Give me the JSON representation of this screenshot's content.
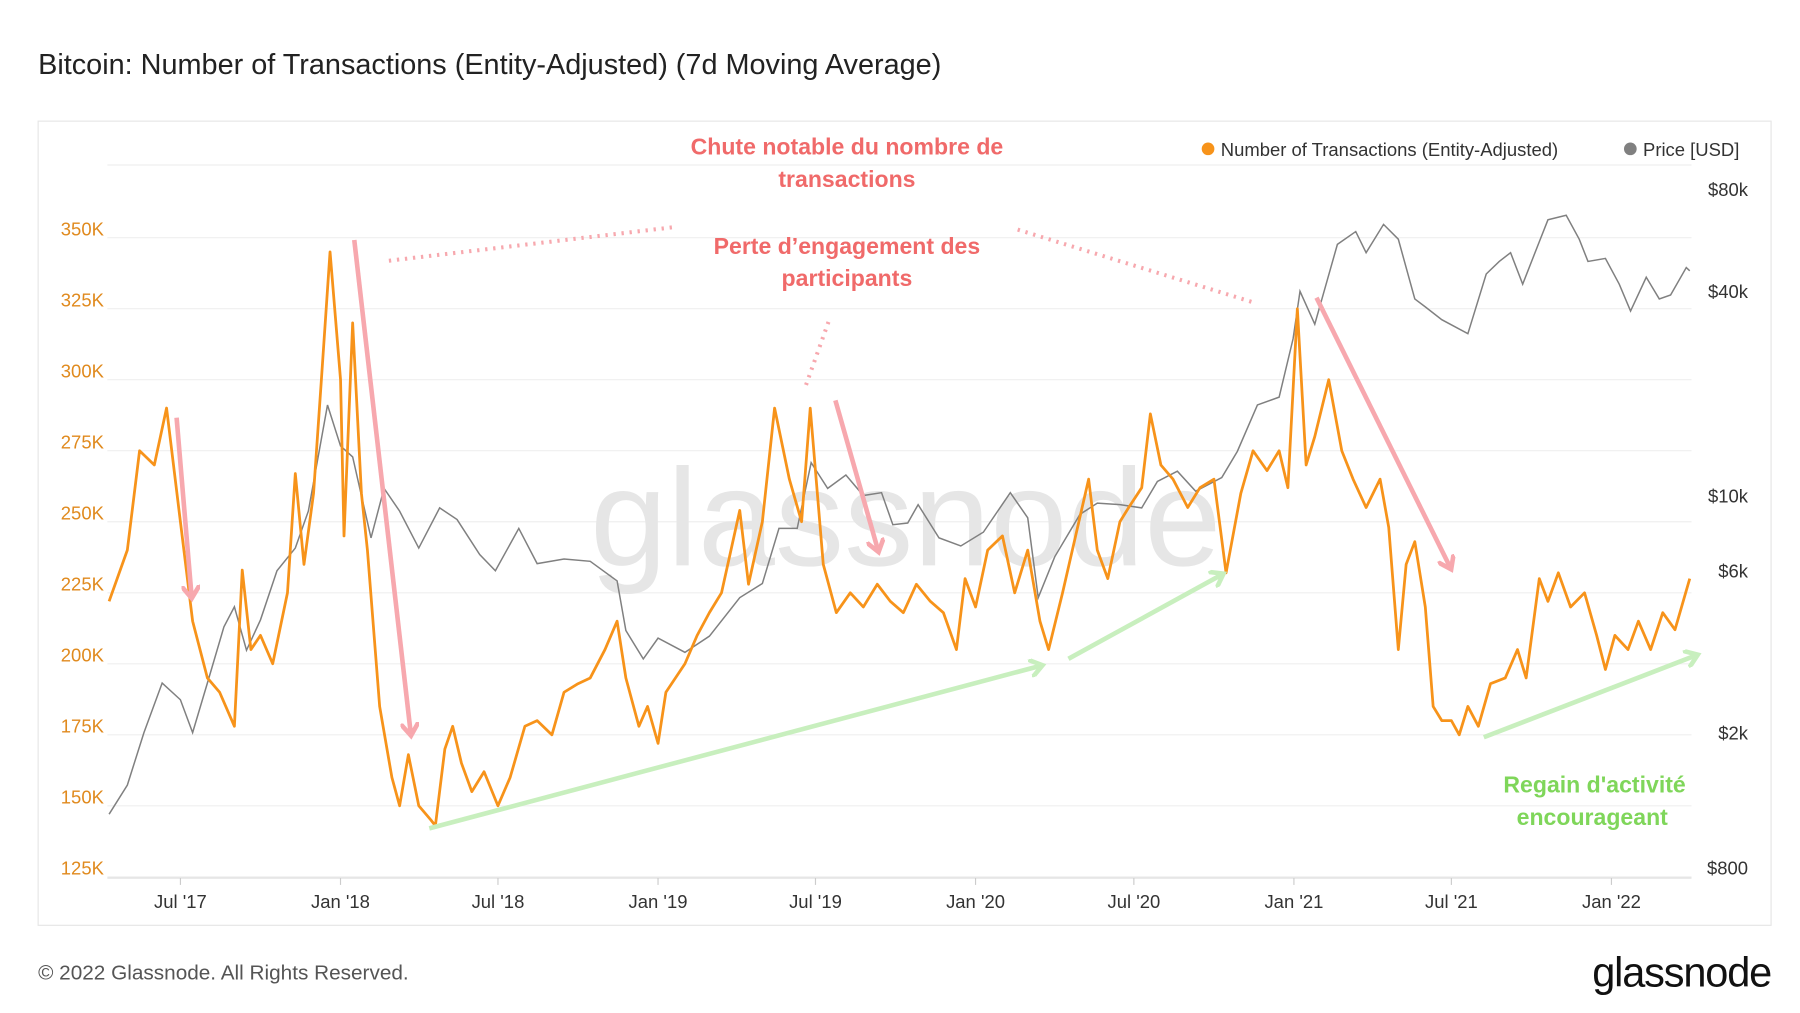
{
  "title": "Bitcoin: Number of Transactions (Entity-Adjusted) (7d Moving Average)",
  "footer": {
    "copyright": "© 2022 Glassnode. All Rights Reserved.",
    "logo": "glassnode"
  },
  "watermark": "glassnode",
  "colors": {
    "tx": "#f7931a",
    "price": "#808080",
    "annot_red": "#f06a6a",
    "annot_green": "#7fd65a",
    "arrow_red": "#f7a8ae",
    "arrow_green": "#c8efbe"
  },
  "annotations": {
    "drop_line1": "Chute notable du nombre de",
    "drop_line2": "transactions",
    "engage_line1": "Perte d’engagement des",
    "engage_line2": "participants",
    "regain_line1": "Regain d'activité",
    "regain_line2": "encourageant"
  },
  "chart_data": {
    "type": "line",
    "title": "Bitcoin: Number of Transactions (Entity-Adjusted) (7d Moving Average)",
    "legend": {
      "position": "top-right",
      "entries": [
        "Number of Transactions (Entity-Adjusted)",
        "Price [USD]"
      ]
    },
    "x_range": [
      "2017-04-08",
      "2022-04-03"
    ],
    "x_ticks": [
      {
        "date": "2017-07-01",
        "label": "Jul '17"
      },
      {
        "date": "2018-01-01",
        "label": "Jan '18"
      },
      {
        "date": "2018-07-01",
        "label": "Jul '18"
      },
      {
        "date": "2019-01-01",
        "label": "Jan '19"
      },
      {
        "date": "2019-07-01",
        "label": "Jul '19"
      },
      {
        "date": "2020-01-01",
        "label": "Jan '20"
      },
      {
        "date": "2020-07-01",
        "label": "Jul '20"
      },
      {
        "date": "2021-01-01",
        "label": "Jan '21"
      },
      {
        "date": "2021-07-01",
        "label": "Jul '21"
      },
      {
        "date": "2022-01-01",
        "label": "Jan '22"
      }
    ],
    "y_left": {
      "label": "Number of Transactions",
      "range": [
        125000,
        350000
      ],
      "ticks": [
        {
          "v": 125000,
          "label": "125K"
        },
        {
          "v": 150000,
          "label": "150K"
        },
        {
          "v": 175000,
          "label": "175K"
        },
        {
          "v": 200000,
          "label": "200K"
        },
        {
          "v": 225000,
          "label": "225K"
        },
        {
          "v": 250000,
          "label": "250K"
        },
        {
          "v": 275000,
          "label": "275K"
        },
        {
          "v": 300000,
          "label": "300K"
        },
        {
          "v": 325000,
          "label": "325K"
        },
        {
          "v": 350000,
          "label": "350K"
        }
      ]
    },
    "y_right": {
      "label": "Price [USD]",
      "scale": "log",
      "range": [
        800,
        80000
      ],
      "ticks": [
        {
          "v": 800,
          "label": "$800"
        },
        {
          "v": 2000,
          "label": "$2k"
        },
        {
          "v": 6000,
          "label": "$6k"
        },
        {
          "v": 10000,
          "label": "$10k"
        },
        {
          "v": 40000,
          "label": "$40k"
        },
        {
          "v": 80000,
          "label": "$80k"
        }
      ]
    },
    "grid": true,
    "series": [
      {
        "name": "Number of Transactions (Entity-Adjusted)",
        "axis": "left",
        "unit": "thousands",
        "points": [
          [
            "2017-04-10",
            222
          ],
          [
            "2017-05-01",
            240
          ],
          [
            "2017-05-15",
            275
          ],
          [
            "2017-06-01",
            270
          ],
          [
            "2017-06-15",
            290
          ],
          [
            "2017-07-01",
            250
          ],
          [
            "2017-07-15",
            215
          ],
          [
            "2017-08-01",
            195
          ],
          [
            "2017-08-15",
            190
          ],
          [
            "2017-09-01",
            178
          ],
          [
            "2017-09-10",
            233
          ],
          [
            "2017-09-20",
            205
          ],
          [
            "2017-10-01",
            210
          ],
          [
            "2017-10-15",
            200
          ],
          [
            "2017-11-01",
            225
          ],
          [
            "2017-11-10",
            267
          ],
          [
            "2017-11-20",
            235
          ],
          [
            "2017-12-01",
            260
          ],
          [
            "2017-12-10",
            300
          ],
          [
            "2017-12-20",
            345
          ],
          [
            "2018-01-01",
            300
          ],
          [
            "2018-01-05",
            245
          ],
          [
            "2018-01-15",
            320
          ],
          [
            "2018-01-25",
            260
          ],
          [
            "2018-02-01",
            240
          ],
          [
            "2018-02-15",
            185
          ],
          [
            "2018-03-01",
            160
          ],
          [
            "2018-03-10",
            150
          ],
          [
            "2018-03-20",
            168
          ],
          [
            "2018-04-01",
            150
          ],
          [
            "2018-04-15",
            145
          ],
          [
            "2018-04-20",
            143
          ],
          [
            "2018-05-01",
            170
          ],
          [
            "2018-05-10",
            178
          ],
          [
            "2018-05-20",
            165
          ],
          [
            "2018-06-01",
            155
          ],
          [
            "2018-06-15",
            162
          ],
          [
            "2018-07-01",
            150
          ],
          [
            "2018-07-15",
            160
          ],
          [
            "2018-08-01",
            178
          ],
          [
            "2018-08-15",
            180
          ],
          [
            "2018-09-01",
            175
          ],
          [
            "2018-09-15",
            190
          ],
          [
            "2018-10-01",
            193
          ],
          [
            "2018-10-15",
            195
          ],
          [
            "2018-11-01",
            205
          ],
          [
            "2018-11-15",
            215
          ],
          [
            "2018-11-25",
            195
          ],
          [
            "2018-12-10",
            178
          ],
          [
            "2018-12-20",
            185
          ],
          [
            "2019-01-01",
            172
          ],
          [
            "2019-01-10",
            190
          ],
          [
            "2019-02-01",
            200
          ],
          [
            "2019-02-15",
            210
          ],
          [
            "2019-03-01",
            218
          ],
          [
            "2019-03-15",
            225
          ],
          [
            "2019-04-05",
            254
          ],
          [
            "2019-04-15",
            228
          ],
          [
            "2019-05-01",
            250
          ],
          [
            "2019-05-15",
            290
          ],
          [
            "2019-06-01",
            265
          ],
          [
            "2019-06-15",
            250
          ],
          [
            "2019-06-25",
            290
          ],
          [
            "2019-07-10",
            235
          ],
          [
            "2019-07-25",
            218
          ],
          [
            "2019-08-10",
            225
          ],
          [
            "2019-08-25",
            220
          ],
          [
            "2019-09-10",
            228
          ],
          [
            "2019-09-25",
            222
          ],
          [
            "2019-10-10",
            218
          ],
          [
            "2019-10-25",
            228
          ],
          [
            "2019-11-10",
            222
          ],
          [
            "2019-11-25",
            218
          ],
          [
            "2019-12-10",
            205
          ],
          [
            "2019-12-20",
            230
          ],
          [
            "2020-01-01",
            220
          ],
          [
            "2020-01-15",
            240
          ],
          [
            "2020-02-01",
            245
          ],
          [
            "2020-02-15",
            225
          ],
          [
            "2020-03-01",
            240
          ],
          [
            "2020-03-15",
            215
          ],
          [
            "2020-03-25",
            205
          ],
          [
            "2020-04-10",
            225
          ],
          [
            "2020-04-25",
            245
          ],
          [
            "2020-05-10",
            265
          ],
          [
            "2020-05-20",
            240
          ],
          [
            "2020-06-01",
            230
          ],
          [
            "2020-06-15",
            250
          ],
          [
            "2020-06-25",
            255
          ],
          [
            "2020-07-10",
            262
          ],
          [
            "2020-07-20",
            288
          ],
          [
            "2020-08-01",
            270
          ],
          [
            "2020-08-15",
            265
          ],
          [
            "2020-09-01",
            255
          ],
          [
            "2020-09-15",
            262
          ],
          [
            "2020-10-01",
            265
          ],
          [
            "2020-10-15",
            232
          ],
          [
            "2020-11-01",
            260
          ],
          [
            "2020-11-15",
            275
          ],
          [
            "2020-12-01",
            268
          ],
          [
            "2020-12-15",
            275
          ],
          [
            "2020-12-25",
            262
          ],
          [
            "2021-01-05",
            325
          ],
          [
            "2021-01-15",
            270
          ],
          [
            "2021-01-25",
            280
          ],
          [
            "2021-02-10",
            300
          ],
          [
            "2021-02-25",
            275
          ],
          [
            "2021-03-10",
            265
          ],
          [
            "2021-03-25",
            255
          ],
          [
            "2021-04-10",
            265
          ],
          [
            "2021-04-20",
            248
          ],
          [
            "2021-05-01",
            205
          ],
          [
            "2021-05-10",
            235
          ],
          [
            "2021-05-20",
            243
          ],
          [
            "2021-06-01",
            220
          ],
          [
            "2021-06-10",
            185
          ],
          [
            "2021-06-20",
            180
          ],
          [
            "2021-07-01",
            180
          ],
          [
            "2021-07-10",
            175
          ],
          [
            "2021-07-20",
            185
          ],
          [
            "2021-08-01",
            178
          ],
          [
            "2021-08-15",
            193
          ],
          [
            "2021-09-01",
            195
          ],
          [
            "2021-09-15",
            205
          ],
          [
            "2021-09-25",
            195
          ],
          [
            "2021-10-10",
            230
          ],
          [
            "2021-10-20",
            222
          ],
          [
            "2021-11-01",
            232
          ],
          [
            "2021-11-15",
            220
          ],
          [
            "2021-12-01",
            225
          ],
          [
            "2021-12-15",
            210
          ],
          [
            "2021-12-25",
            198
          ],
          [
            "2022-01-05",
            210
          ],
          [
            "2022-01-20",
            205
          ],
          [
            "2022-02-01",
            215
          ],
          [
            "2022-02-15",
            205
          ],
          [
            "2022-03-01",
            218
          ],
          [
            "2022-03-15",
            212
          ],
          [
            "2022-04-01",
            230
          ]
        ]
      },
      {
        "name": "Price [USD]",
        "axis": "right",
        "unit": "USD",
        "points": [
          [
            "2017-04-10",
            1150
          ],
          [
            "2017-05-01",
            1400
          ],
          [
            "2017-05-20",
            2000
          ],
          [
            "2017-06-10",
            2800
          ],
          [
            "2017-07-01",
            2500
          ],
          [
            "2017-07-15",
            2000
          ],
          [
            "2017-08-01",
            2800
          ],
          [
            "2017-08-20",
            4100
          ],
          [
            "2017-09-01",
            4700
          ],
          [
            "2017-09-15",
            3500
          ],
          [
            "2017-10-01",
            4300
          ],
          [
            "2017-10-20",
            6000
          ],
          [
            "2017-11-10",
            7000
          ],
          [
            "2017-11-25",
            9000
          ],
          [
            "2017-12-17",
            18500
          ],
          [
            "2018-01-01",
            14000
          ],
          [
            "2018-01-15",
            13000
          ],
          [
            "2018-02-05",
            7500
          ],
          [
            "2018-02-20",
            10500
          ],
          [
            "2018-03-10",
            9000
          ],
          [
            "2018-04-01",
            7000
          ],
          [
            "2018-04-25",
            9200
          ],
          [
            "2018-05-15",
            8500
          ],
          [
            "2018-06-10",
            6700
          ],
          [
            "2018-06-28",
            6000
          ],
          [
            "2018-07-25",
            8000
          ],
          [
            "2018-08-15",
            6300
          ],
          [
            "2018-09-15",
            6500
          ],
          [
            "2018-10-15",
            6400
          ],
          [
            "2018-11-15",
            5600
          ],
          [
            "2018-11-25",
            4000
          ],
          [
            "2018-12-15",
            3300
          ],
          [
            "2019-01-01",
            3800
          ],
          [
            "2019-02-01",
            3450
          ],
          [
            "2019-03-01",
            3850
          ],
          [
            "2019-04-05",
            5000
          ],
          [
            "2019-05-01",
            5500
          ],
          [
            "2019-05-20",
            8000
          ],
          [
            "2019-06-10",
            8000
          ],
          [
            "2019-06-26",
            12500
          ],
          [
            "2019-07-15",
            10500
          ],
          [
            "2019-08-05",
            11500
          ],
          [
            "2019-08-25",
            10000
          ],
          [
            "2019-09-15",
            10200
          ],
          [
            "2019-09-28",
            8200
          ],
          [
            "2019-10-15",
            8300
          ],
          [
            "2019-10-27",
            9400
          ],
          [
            "2019-11-20",
            7500
          ],
          [
            "2019-12-15",
            7100
          ],
          [
            "2020-01-10",
            7800
          ],
          [
            "2020-02-10",
            10200
          ],
          [
            "2020-03-01",
            8600
          ],
          [
            "2020-03-13",
            5000
          ],
          [
            "2020-04-01",
            6600
          ],
          [
            "2020-04-30",
            8800
          ],
          [
            "2020-05-20",
            9500
          ],
          [
            "2020-06-15",
            9400
          ],
          [
            "2020-07-10",
            9200
          ],
          [
            "2020-07-28",
            11000
          ],
          [
            "2020-08-20",
            11800
          ],
          [
            "2020-09-10",
            10300
          ],
          [
            "2020-10-10",
            11300
          ],
          [
            "2020-10-28",
            13500
          ],
          [
            "2020-11-20",
            18500
          ],
          [
            "2020-12-15",
            19500
          ],
          [
            "2020-12-31",
            29000
          ],
          [
            "2021-01-08",
            40000
          ],
          [
            "2021-01-25",
            32000
          ],
          [
            "2021-02-20",
            55000
          ],
          [
            "2021-03-13",
            60000
          ],
          [
            "2021-03-25",
            52000
          ],
          [
            "2021-04-14",
            63000
          ],
          [
            "2021-05-01",
            57000
          ],
          [
            "2021-05-20",
            38000
          ],
          [
            "2021-06-01",
            36000
          ],
          [
            "2021-06-20",
            33000
          ],
          [
            "2021-07-20",
            30000
          ],
          [
            "2021-08-10",
            45000
          ],
          [
            "2021-08-25",
            49000
          ],
          [
            "2021-09-07",
            52000
          ],
          [
            "2021-09-21",
            42000
          ],
          [
            "2021-10-10",
            56000
          ],
          [
            "2021-10-20",
            65000
          ],
          [
            "2021-11-10",
            67000
          ],
          [
            "2021-11-25",
            57000
          ],
          [
            "2021-12-05",
            49000
          ],
          [
            "2021-12-25",
            50000
          ],
          [
            "2022-01-10",
            42000
          ],
          [
            "2022-01-23",
            35000
          ],
          [
            "2022-02-10",
            44000
          ],
          [
            "2022-02-25",
            38000
          ],
          [
            "2022-03-10",
            39000
          ],
          [
            "2022-03-28",
            47000
          ],
          [
            "2022-04-01",
            46000
          ]
        ]
      }
    ]
  }
}
